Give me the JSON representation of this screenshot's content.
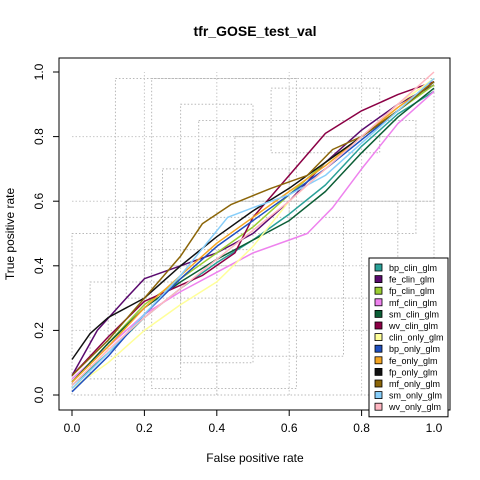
{
  "chart_data": {
    "type": "line",
    "title": "tfr_GOSE_test_val",
    "xlabel": "False positive rate",
    "ylabel": "True positive rate",
    "xlim": [
      0,
      1
    ],
    "ylim": [
      0,
      1
    ],
    "xticks": [
      "0.0",
      "0.2",
      "0.4",
      "0.6",
      "0.8",
      "1.0"
    ],
    "yticks": [
      "0.0",
      "0.2",
      "0.4",
      "0.6",
      "0.8",
      "1.0"
    ],
    "legend_position": "bottom-right",
    "background_grid": "dotted gray boxes",
    "series": [
      {
        "name": "bp_clin_glm",
        "color": "#2aa198",
        "x": [
          0,
          0.1,
          0.2,
          0.3,
          0.4,
          0.5,
          0.6,
          0.7,
          0.8,
          0.9,
          1.0
        ],
        "y": [
          0.03,
          0.13,
          0.24,
          0.33,
          0.41,
          0.48,
          0.56,
          0.65,
          0.77,
          0.87,
          0.94
        ]
      },
      {
        "name": "fe_clin_glm",
        "color": "#5a0a6e",
        "x": [
          0,
          0.07,
          0.15,
          0.2,
          0.3,
          0.4,
          0.5,
          0.6,
          0.7,
          0.8,
          0.9,
          1.0
        ],
        "y": [
          0.06,
          0.2,
          0.3,
          0.36,
          0.4,
          0.44,
          0.5,
          0.6,
          0.72,
          0.82,
          0.9,
          0.96
        ]
      },
      {
        "name": "fp_clin_glm",
        "color": "#9acd32",
        "x": [
          0,
          0.1,
          0.2,
          0.3,
          0.4,
          0.5,
          0.6,
          0.7,
          0.8,
          0.9,
          1.0
        ],
        "y": [
          0.04,
          0.16,
          0.28,
          0.36,
          0.44,
          0.52,
          0.62,
          0.72,
          0.8,
          0.88,
          0.96
        ]
      },
      {
        "name": "mf_clin_glm",
        "color": "#ee82ee",
        "x": [
          0,
          0.1,
          0.2,
          0.3,
          0.4,
          0.5,
          0.6,
          0.65,
          0.72,
          0.8,
          0.9,
          1.0
        ],
        "y": [
          0.05,
          0.15,
          0.25,
          0.32,
          0.38,
          0.44,
          0.48,
          0.5,
          0.58,
          0.7,
          0.84,
          0.94
        ]
      },
      {
        "name": "sm_clin_glm",
        "color": "#0b5d35",
        "x": [
          0,
          0.1,
          0.2,
          0.3,
          0.4,
          0.5,
          0.6,
          0.7,
          0.8,
          0.9,
          1.0
        ],
        "y": [
          0.04,
          0.16,
          0.27,
          0.35,
          0.42,
          0.48,
          0.54,
          0.63,
          0.75,
          0.86,
          0.95
        ]
      },
      {
        "name": "wv_clin_glm",
        "color": "#8b0045",
        "x": [
          0,
          0.1,
          0.2,
          0.3,
          0.36,
          0.45,
          0.5,
          0.6,
          0.7,
          0.8,
          0.9,
          1.0
        ],
        "y": [
          0.06,
          0.18,
          0.29,
          0.34,
          0.37,
          0.44,
          0.55,
          0.68,
          0.81,
          0.88,
          0.93,
          0.97
        ]
      },
      {
        "name": "clin_only_glm",
        "color": "#ffff99",
        "x": [
          0,
          0.1,
          0.2,
          0.3,
          0.4,
          0.5,
          0.6,
          0.7,
          0.8,
          0.9,
          1.0
        ],
        "y": [
          0.02,
          0.1,
          0.2,
          0.28,
          0.35,
          0.46,
          0.6,
          0.7,
          0.8,
          0.9,
          0.98
        ]
      },
      {
        "name": "bp_only_glm",
        "color": "#1f4fbf",
        "x": [
          0,
          0.1,
          0.2,
          0.3,
          0.4,
          0.5,
          0.6,
          0.7,
          0.8,
          0.9,
          1.0
        ],
        "y": [
          0.01,
          0.12,
          0.25,
          0.36,
          0.46,
          0.54,
          0.62,
          0.7,
          0.79,
          0.88,
          0.97
        ]
      },
      {
        "name": "fe_only_glm",
        "color": "#f5a623",
        "x": [
          0,
          0.1,
          0.2,
          0.3,
          0.4,
          0.5,
          0.6,
          0.7,
          0.8,
          0.9,
          1.0
        ],
        "y": [
          0.04,
          0.15,
          0.27,
          0.37,
          0.47,
          0.55,
          0.63,
          0.71,
          0.8,
          0.89,
          0.97
        ]
      },
      {
        "name": "fp_only_glm",
        "color": "#111111",
        "x": [
          0,
          0.05,
          0.1,
          0.2,
          0.3,
          0.4,
          0.5,
          0.6,
          0.7,
          0.8,
          0.9,
          1.0
        ],
        "y": [
          0.11,
          0.19,
          0.24,
          0.3,
          0.4,
          0.49,
          0.57,
          0.64,
          0.72,
          0.8,
          0.88,
          0.97
        ]
      },
      {
        "name": "mf_only_glm",
        "color": "#8b6508",
        "x": [
          0,
          0.1,
          0.2,
          0.3,
          0.36,
          0.44,
          0.55,
          0.65,
          0.72,
          0.8,
          0.9,
          1.0
        ],
        "y": [
          0.06,
          0.17,
          0.3,
          0.43,
          0.53,
          0.59,
          0.64,
          0.68,
          0.76,
          0.8,
          0.88,
          0.97
        ]
      },
      {
        "name": "sm_only_glm",
        "color": "#87cefa",
        "x": [
          0,
          0.1,
          0.2,
          0.3,
          0.43,
          0.5,
          0.6,
          0.7,
          0.8,
          0.9,
          1.0
        ],
        "y": [
          0.02,
          0.13,
          0.25,
          0.37,
          0.55,
          0.58,
          0.62,
          0.68,
          0.78,
          0.88,
          0.98
        ]
      },
      {
        "name": "wv_only_glm",
        "color": "#ffb6c1",
        "x": [
          0,
          0.1,
          0.2,
          0.3,
          0.4,
          0.5,
          0.6,
          0.7,
          0.8,
          0.9,
          1.0
        ],
        "y": [
          0.03,
          0.14,
          0.24,
          0.33,
          0.42,
          0.51,
          0.6,
          0.7,
          0.8,
          0.9,
          1.0
        ]
      }
    ]
  }
}
